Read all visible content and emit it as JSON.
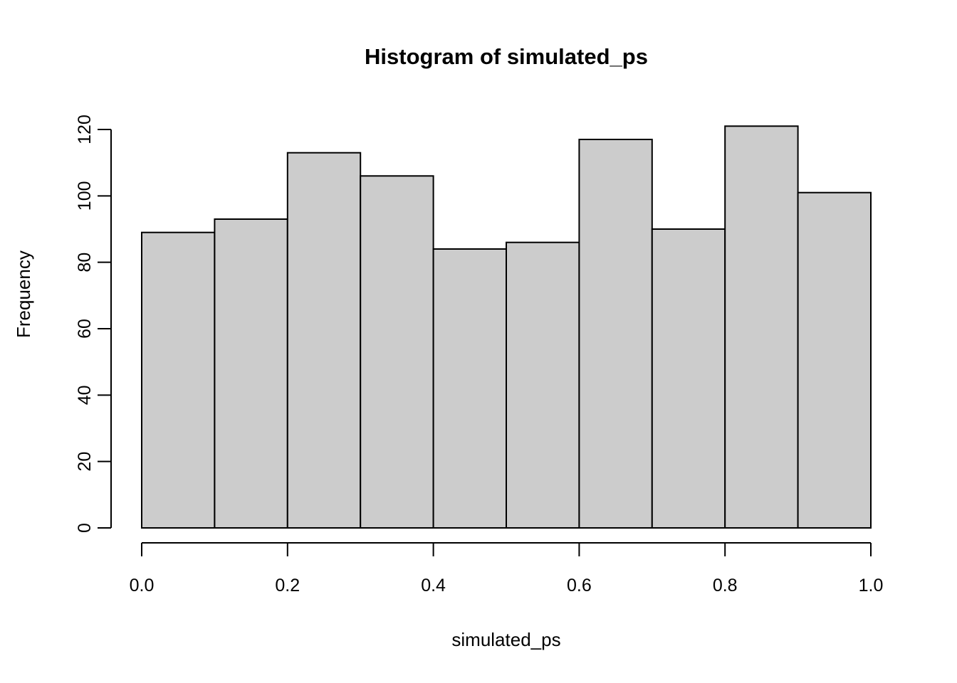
{
  "chart_data": {
    "type": "bar",
    "subtype": "histogram",
    "title": "Histogram of simulated_ps",
    "xlabel": "simulated_ps",
    "ylabel": "Frequency",
    "bin_edges": [
      0.0,
      0.1,
      0.2,
      0.3,
      0.4,
      0.5,
      0.6,
      0.7,
      0.8,
      0.9,
      1.0
    ],
    "counts": [
      89,
      93,
      113,
      106,
      84,
      86,
      117,
      90,
      121,
      101
    ],
    "total_count": 1000,
    "xlim": [
      0.0,
      1.0
    ],
    "ylim": [
      0,
      120
    ],
    "x_tick_values": [
      0.0,
      0.2,
      0.4,
      0.6,
      0.8,
      1.0
    ],
    "x_tick_labels": [
      "0.0",
      "0.2",
      "0.4",
      "0.6",
      "0.8",
      "1.0"
    ],
    "y_tick_values": [
      0,
      20,
      40,
      60,
      80,
      100,
      120
    ],
    "y_tick_labels": [
      "0",
      "20",
      "40",
      "60",
      "80",
      "100",
      "120"
    ],
    "grid": false,
    "legend_position": "none",
    "colors": {
      "bar_fill": "#cccccc",
      "bar_stroke": "#000000",
      "axis": "#000000",
      "text": "#000000",
      "background": "#ffffff"
    }
  }
}
